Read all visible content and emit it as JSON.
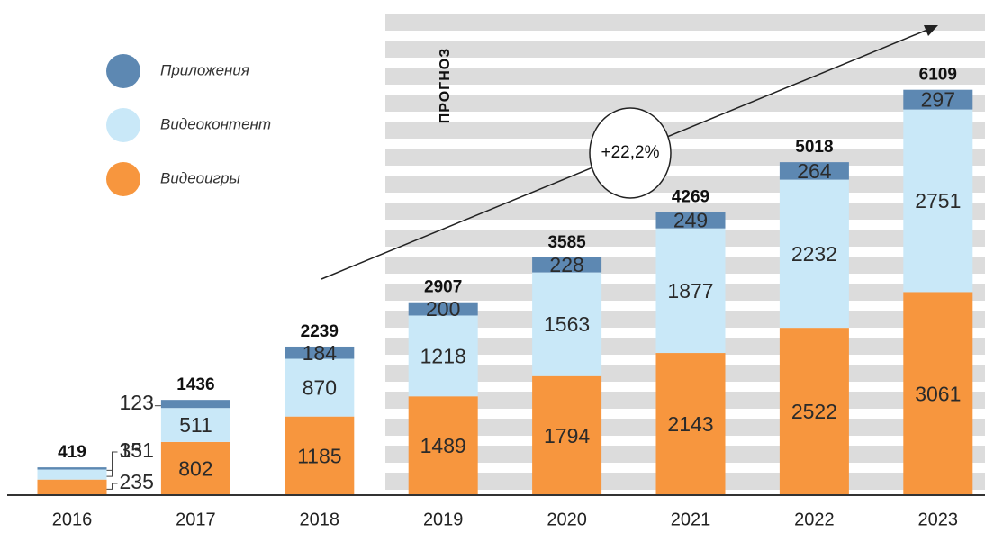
{
  "chart_data": {
    "type": "stacked-bar",
    "categories": [
      "2016",
      "2017",
      "2018",
      "2019",
      "2020",
      "2021",
      "2022",
      "2023"
    ],
    "series": [
      {
        "name": "Видеоигры",
        "color": "#f7963e",
        "values": [
          235,
          802,
          1185,
          1489,
          1794,
          2143,
          2522,
          3061
        ]
      },
      {
        "name": "Видеоконтент",
        "color": "#c9e8f8",
        "values": [
          151,
          511,
          870,
          1218,
          1563,
          1877,
          2232,
          2751
        ]
      },
      {
        "name": "Приложения",
        "color": "#5d88b2",
        "values": [
          33,
          123,
          184,
          200,
          228,
          249,
          264,
          297
        ]
      }
    ],
    "totals": [
      419,
      1436,
      2239,
      2907,
      3585,
      4269,
      5018,
      6109
    ],
    "ylim": [
      0,
      6200
    ],
    "annotations": {
      "forecast": "ПРОГНОЗ",
      "growth": "+22,2%"
    }
  }
}
